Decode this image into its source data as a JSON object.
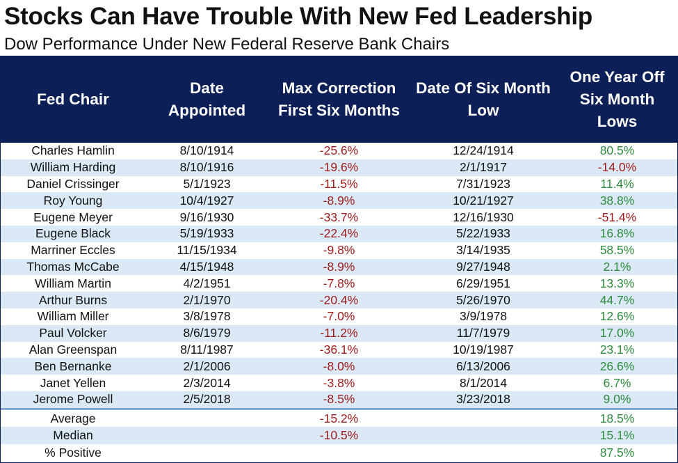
{
  "title": "Stocks Can Have Trouble With New Fed Leadership",
  "subtitle": "Dow Performance Under New Federal Reserve Bank Chairs",
  "colors": {
    "header_bg": "#0c2057",
    "row_alt": "#dbe9f6",
    "negative": "#9e1a1a",
    "positive": "#2e8b3e"
  },
  "chart_data": {
    "type": "table",
    "title": "Stocks Can Have Trouble With New Fed Leadership",
    "subtitle": "Dow Performance Under New Federal Reserve Bank Chairs",
    "columns": [
      "Fed Chair",
      "Date Appointed",
      "Max Correction First Six Months",
      "Date Of Six Month Low",
      "One Year Off Six Month Lows"
    ],
    "rows": [
      [
        "Charles Hamlin",
        "8/10/1914",
        "-25.6%",
        "12/24/1914",
        "80.5%"
      ],
      [
        "William Harding",
        "8/10/1916",
        "-19.6%",
        "2/1/1917",
        "-14.0%"
      ],
      [
        "Daniel Crissinger",
        "5/1/1923",
        "-11.5%",
        "7/31/1923",
        "11.4%"
      ],
      [
        "Roy Young",
        "10/4/1927",
        "-8.9%",
        "10/21/1927",
        "38.8%"
      ],
      [
        "Eugene Meyer",
        "9/16/1930",
        "-33.7%",
        "12/16/1930",
        "-51.4%"
      ],
      [
        "Eugene Black",
        "5/19/1933",
        "-22.4%",
        "5/22/1933",
        "16.8%"
      ],
      [
        "Marriner Eccles",
        "11/15/1934",
        "-9.8%",
        "3/14/1935",
        "58.5%"
      ],
      [
        "Thomas McCabe",
        "4/15/1948",
        "-8.9%",
        "9/27/1948",
        "2.1%"
      ],
      [
        "William Martin",
        "4/2/1951",
        "-7.8%",
        "6/29/1951",
        "13.3%"
      ],
      [
        "Arthur Burns",
        "2/1/1970",
        "-20.4%",
        "5/26/1970",
        "44.7%"
      ],
      [
        "William Miller",
        "3/8/1978",
        "-7.0%",
        "3/9/1978",
        "12.6%"
      ],
      [
        "Paul Volcker",
        "8/6/1979",
        "-11.2%",
        "11/7/1979",
        "17.0%"
      ],
      [
        "Alan Greenspan",
        "8/11/1987",
        "-36.1%",
        "10/19/1987",
        "23.1%"
      ],
      [
        "Ben Bernanke",
        "2/1/2006",
        "-8.0%",
        "6/13/2006",
        "26.6%"
      ],
      [
        "Janet Yellen",
        "2/3/2014",
        "-3.8%",
        "8/1/2014",
        "6.7%"
      ],
      [
        "Jerome Powell",
        "2/5/2018",
        "-8.5%",
        "3/23/2018",
        "9.0%"
      ]
    ],
    "summary": [
      [
        "Average",
        "",
        "-15.2%",
        "",
        "18.5%"
      ],
      [
        "Median",
        "",
        "-10.5%",
        "",
        "15.1%"
      ],
      [
        "% Positive",
        "",
        "",
        "",
        "87.5%"
      ]
    ]
  }
}
